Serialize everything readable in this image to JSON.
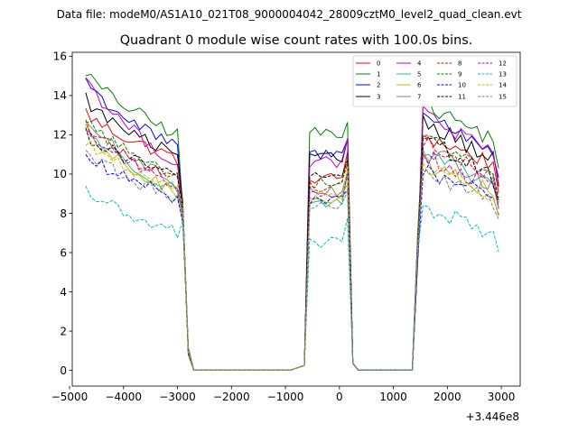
{
  "chart_data": {
    "type": "line",
    "suptitle": "Data file: modeM0/AS1A10_021T08_9000004042_28009cztM0_level2_quad_clean.evt",
    "title": "Quadrant 0 module wise count rates with 100.0s bins.",
    "xlabel": "",
    "ylabel": "",
    "x_offset_label": "+3.446e8",
    "xlim": [
      -4950,
      3350
    ],
    "ylim": [
      -0.8,
      16.2
    ],
    "x_ticks": [
      -5000,
      -4000,
      -3000,
      -2000,
      -1000,
      0,
      1000,
      2000,
      3000
    ],
    "x_tick_labels": [
      "−5000",
      "−4000",
      "−3000",
      "−2000",
      "−1000",
      "0",
      "1000",
      "2000",
      "3000"
    ],
    "y_ticks": [
      0,
      2,
      4,
      6,
      8,
      10,
      12,
      14,
      16
    ],
    "y_tick_labels": [
      "0",
      "2",
      "4",
      "6",
      "8",
      "10",
      "12",
      "14",
      "16"
    ],
    "legend_position": "top-right",
    "segments": [
      {
        "x_start": -4700,
        "step": 100,
        "count": 20
      },
      {
        "x_start": -2700,
        "step": 100,
        "count": 19
      },
      {
        "x_start": -650,
        "step": 100,
        "count": 1
      },
      {
        "x_start": -550,
        "step": 100,
        "count": 8
      },
      {
        "x_start": 250,
        "step": 100,
        "count": 1
      },
      {
        "x_start": 350,
        "step": 100,
        "count": 11
      },
      {
        "x_start": 1450,
        "step": 100,
        "count": 1
      },
      {
        "x_start": 1550,
        "step": 100,
        "count": 15
      }
    ],
    "ramps": {
      "seg0_tail": [
        8.0,
        1.0
      ],
      "seg2_value": 0.25,
      "seg4_value": 0.35,
      "seg6_value": 0.3
    },
    "series": [
      {
        "name": "0",
        "color": "#ff0000",
        "dash": "solid",
        "levels": [
          13.2,
          10.8,
          9.8,
          12.0,
          10.4
        ]
      },
      {
        "name": "1",
        "color": "#008000",
        "dash": "solid",
        "levels": [
          15.3,
          12.0,
          12.1,
          13.6,
          11.6
        ]
      },
      {
        "name": "2",
        "color": "#0000ff",
        "dash": "solid",
        "levels": [
          14.9,
          11.3,
          11.0,
          13.0,
          11.1
        ]
      },
      {
        "name": "3",
        "color": "#000000",
        "dash": "solid",
        "levels": [
          13.9,
          10.9,
          10.8,
          12.8,
          10.6
        ]
      },
      {
        "name": "4",
        "color": "#bf00bf",
        "dash": "solid",
        "levels": [
          15.1,
          10.5,
          10.6,
          13.2,
          10.7
        ]
      },
      {
        "name": "5",
        "color": "#1abc9c",
        "dash": "solid",
        "levels": [
          12.5,
          9.2,
          8.6,
          10.9,
          9.4
        ]
      },
      {
        "name": "6",
        "color": "#bfbf00",
        "dash": "solid",
        "levels": [
          12.2,
          9.0,
          8.8,
          10.6,
          9.0
        ]
      },
      {
        "name": "7",
        "color": "#808080",
        "dash": "solid",
        "levels": [
          12.8,
          9.6,
          9.2,
          11.3,
          9.3
        ]
      },
      {
        "name": "8",
        "color": "#ff0000",
        "dash": "dashed",
        "levels": [
          12.6,
          9.7,
          9.4,
          11.7,
          9.6
        ]
      },
      {
        "name": "9",
        "color": "#008000",
        "dash": "dashed",
        "levels": [
          12.9,
          9.9,
          9.6,
          12.2,
          9.8
        ]
      },
      {
        "name": "10",
        "color": "#0000ff",
        "dash": "dashed",
        "levels": [
          11.0,
          8.8,
          8.6,
          10.1,
          8.9
        ]
      },
      {
        "name": "11",
        "color": "#000000",
        "dash": "dashed",
        "levels": [
          12.1,
          9.9,
          9.9,
          11.9,
          9.6
        ]
      },
      {
        "name": "12",
        "color": "#bf00bf",
        "dash": "dashed",
        "levels": [
          12.4,
          9.4,
          9.0,
          11.0,
          9.2
        ]
      },
      {
        "name": "13",
        "color": "#00bfbf",
        "dash": "dashed",
        "levels": [
          9.3,
          7.0,
          6.5,
          8.3,
          6.9
        ]
      },
      {
        "name": "14",
        "color": "#bfbf00",
        "dash": "dashed",
        "levels": [
          11.8,
          9.1,
          8.9,
          10.4,
          8.8
        ]
      },
      {
        "name": "15",
        "color": "#808080",
        "dash": "dashed",
        "levels": [
          11.3,
          8.7,
          8.4,
          10.0,
          8.5
        ]
      }
    ]
  }
}
